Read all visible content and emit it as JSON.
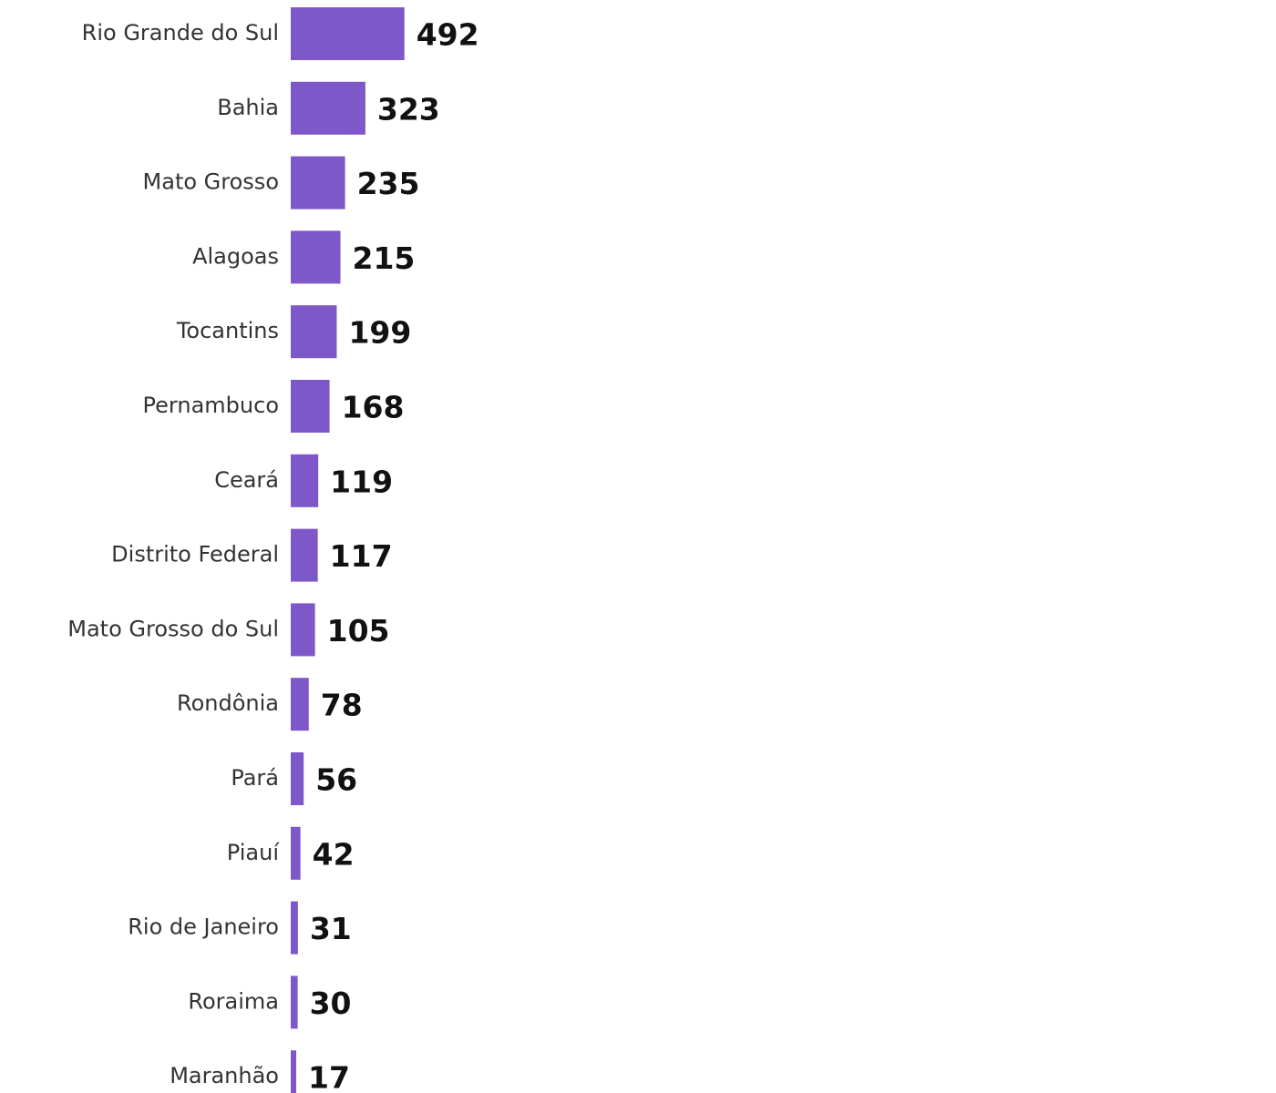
{
  "chart_data": {
    "type": "bar",
    "orientation": "horizontal",
    "categories": [
      "Rio Grande do Sul",
      "Bahia",
      "Mato Grosso",
      "Alagoas",
      "Tocantins",
      "Pernambuco",
      "Ceará",
      "Distrito Federal",
      "Mato Grosso do Sul",
      "Rondônia",
      "Pará",
      "Piauí",
      "Rio de Janeiro",
      "Roraima",
      "Maranhão"
    ],
    "values": [
      492,
      323,
      235,
      215,
      199,
      168,
      119,
      117,
      105,
      78,
      56,
      42,
      31,
      30,
      17
    ],
    "colors": {
      "bar": "#7e57c9"
    },
    "grid": false,
    "legend": "none"
  }
}
